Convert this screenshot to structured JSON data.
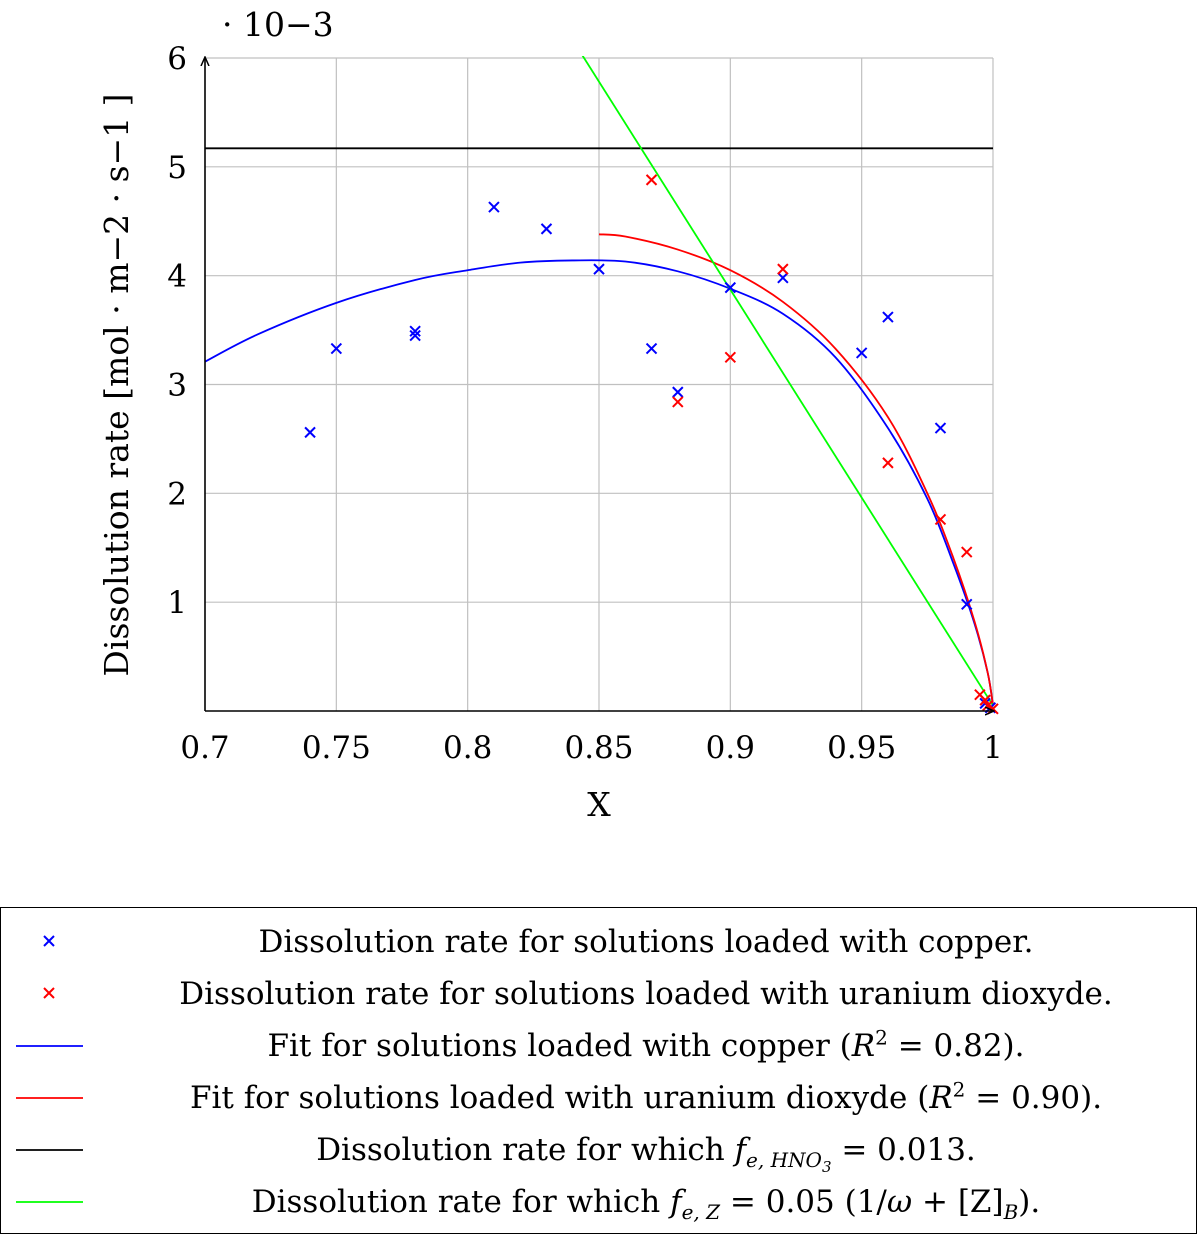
{
  "chart_data": {
    "type": "scatter",
    "title": "",
    "xlabel": "X",
    "ylabel": "Dissolution rate [mol · m−2 · s−1 ]",
    "y_multiplier": "· 10−3",
    "xlim": [
      0.7,
      1.0
    ],
    "ylim": [
      0,
      6
    ],
    "x_ticks": [
      "0.7",
      "0.75",
      "0.8",
      "0.85",
      "0.9",
      "0.95",
      "1"
    ],
    "y_ticks": [
      "1",
      "2",
      "3",
      "4",
      "5",
      "6"
    ],
    "grid": true,
    "legend_position": "below",
    "series": [
      {
        "name": "Dissolution rate for solutions loaded with copper.",
        "kind": "scatter",
        "color": "#0000ff",
        "marker": "x",
        "points": [
          [
            0.74,
            2.56
          ],
          [
            0.75,
            3.33
          ],
          [
            0.78,
            3.45
          ],
          [
            0.78,
            3.49
          ],
          [
            0.81,
            4.63
          ],
          [
            0.83,
            4.43
          ],
          [
            0.85,
            4.06
          ],
          [
            0.87,
            3.33
          ],
          [
            0.88,
            2.93
          ],
          [
            0.9,
            3.89
          ],
          [
            0.92,
            3.98
          ],
          [
            0.95,
            3.29
          ],
          [
            0.96,
            3.62
          ],
          [
            0.98,
            2.6
          ],
          [
            0.99,
            0.98
          ],
          [
            0.997,
            0.07
          ],
          [
            0.999,
            0.03
          ]
        ]
      },
      {
        "name": "Dissolution rate for solutions loaded with uranium dioxyde.",
        "kind": "scatter",
        "color": "#ff0000",
        "marker": "x",
        "points": [
          [
            0.87,
            4.88
          ],
          [
            0.88,
            2.84
          ],
          [
            0.9,
            3.25
          ],
          [
            0.92,
            4.06
          ],
          [
            0.96,
            2.28
          ],
          [
            0.98,
            1.76
          ],
          [
            0.99,
            1.46
          ],
          [
            0.995,
            0.15
          ],
          [
            0.997,
            0.1
          ],
          [
            0.998,
            0.05
          ],
          [
            1.0,
            0.02
          ]
        ]
      },
      {
        "name": "Fit for solutions loaded with copper (R2 = 0.82).",
        "kind": "line",
        "color": "#0000ff",
        "points": [
          [
            0.7,
            3.21
          ],
          [
            0.72,
            3.46
          ],
          [
            0.75,
            3.75
          ],
          [
            0.78,
            3.96
          ],
          [
            0.8,
            4.05
          ],
          [
            0.82,
            4.12
          ],
          [
            0.84,
            4.14
          ],
          [
            0.86,
            4.13
          ],
          [
            0.88,
            4.04
          ],
          [
            0.9,
            3.88
          ],
          [
            0.92,
            3.65
          ],
          [
            0.94,
            3.25
          ],
          [
            0.96,
            2.6
          ],
          [
            0.975,
            1.95
          ],
          [
            0.985,
            1.35
          ],
          [
            0.993,
            0.8
          ],
          [
            0.998,
            0.35
          ],
          [
            1.0,
            0.05
          ]
        ]
      },
      {
        "name": "Fit for solutions loaded with uranium dioxyde (R2 = 0.90).",
        "kind": "line",
        "color": "#ff0000",
        "points": [
          [
            0.85,
            4.38
          ],
          [
            0.86,
            4.36
          ],
          [
            0.88,
            4.24
          ],
          [
            0.9,
            4.05
          ],
          [
            0.92,
            3.76
          ],
          [
            0.94,
            3.33
          ],
          [
            0.96,
            2.7
          ],
          [
            0.975,
            2.0
          ],
          [
            0.985,
            1.4
          ],
          [
            0.993,
            0.82
          ],
          [
            0.998,
            0.35
          ],
          [
            1.0,
            0.05
          ]
        ]
      },
      {
        "name": "Dissolution rate for which fe, HNO3 = 0.013.",
        "kind": "line",
        "color": "#000000",
        "points": [
          [
            0.7,
            5.17
          ],
          [
            1.0,
            5.17
          ]
        ]
      },
      {
        "name": "Dissolution rate for which fe, Z = 0.05 (1/ω + [Z]B).",
        "kind": "line",
        "color": "#00ff00",
        "points": [
          [
            0.843,
            6.05
          ],
          [
            1.0,
            0.05
          ]
        ]
      }
    ]
  },
  "legend": [
    {
      "symbol": "x",
      "color": "#0000ff",
      "text": "Dissolution rate for solutions loaded with copper."
    },
    {
      "symbol": "x",
      "color": "#ff0000",
      "text": "Dissolution rate for solutions loaded with uranium dioxyde."
    },
    {
      "symbol": "line",
      "color": "#0000ff",
      "pre": "Fit for solutions loaded with copper (",
      "var": "R",
      "sup": "2",
      "post": " = 0.82)."
    },
    {
      "symbol": "line",
      "color": "#ff0000",
      "pre": "Fit for solutions loaded with uranium dioxyde (",
      "var": "R",
      "sup": "2",
      "post": " = 0.90)."
    },
    {
      "symbol": "line",
      "color": "#000000",
      "pre": "Dissolution rate for which ",
      "var": "f",
      "sub": "e, HNO",
      "subsub": "3",
      "post": " = 0.013."
    },
    {
      "symbol": "line",
      "color": "#00ff00",
      "pre": "Dissolution rate for which ",
      "var": "f",
      "sub": "e, Z",
      "post": " = 0.05 (1/",
      "omega": "ω",
      "post2": " + [Z]",
      "sub2": "B",
      "post3": ")."
    }
  ]
}
